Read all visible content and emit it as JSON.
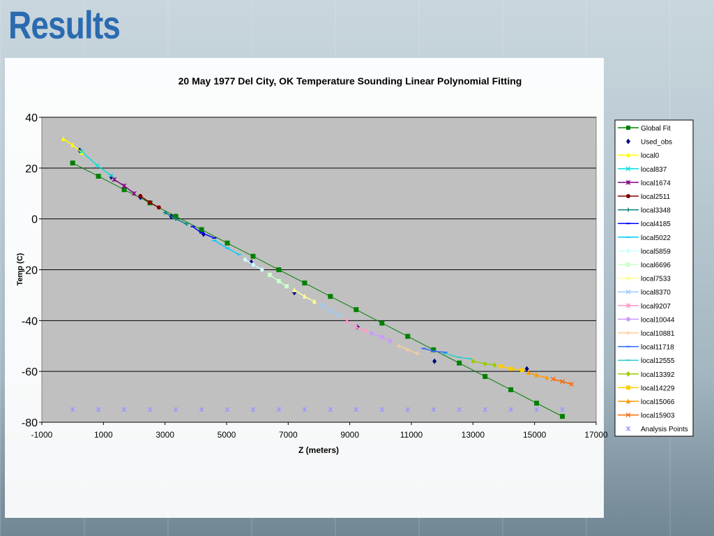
{
  "slide": {
    "title": "Results"
  },
  "colors": {
    "title": "#2a6bb0",
    "plot_bg": "#c0c0c0",
    "gridline": "#000000"
  },
  "chart_data": {
    "type": "scatter",
    "title": "20 May 1977 Del City, OK Temperature Sounding Linear Polynomial Fitting",
    "xlabel": "Z (meters)",
    "ylabel": "Temp (C)",
    "xlim": [
      -1000,
      17000
    ],
    "ylim": [
      -80,
      40
    ],
    "xticks": [
      -1000,
      1000,
      3000,
      5000,
      7000,
      9000,
      11000,
      13000,
      15000,
      17000
    ],
    "yticks": [
      40,
      20,
      0,
      -20,
      -40,
      -60,
      -80
    ],
    "grid": "horizontal",
    "legend_position": "right",
    "series": [
      {
        "name": "Global Fit",
        "color": "#008000",
        "marker": "square",
        "line": true,
        "x": [
          0,
          837,
          1674,
          2511,
          3348,
          4185,
          5022,
          5859,
          6696,
          7533,
          8370,
          9207,
          10044,
          10881,
          11718,
          12555,
          13392,
          14229,
          15066,
          15903
        ],
        "y": [
          22,
          16.8,
          11.5,
          6.3,
          1,
          -4.2,
          -9.5,
          -14.7,
          -20,
          -25.2,
          -30.5,
          -35.7,
          -41,
          -46.2,
          -51.5,
          -56.7,
          -62,
          -67.2,
          -72.5,
          -77.7
        ]
      },
      {
        "name": "Used_obs",
        "color": "#000080",
        "marker": "diamond",
        "line": false,
        "x": [
          230,
          1250,
          2200,
          3200,
          4250,
          5800,
          7200,
          9250,
          11750,
          14750
        ],
        "y": [
          27,
          16.5,
          8.5,
          1,
          -6,
          -17,
          -29,
          -42.5,
          -56,
          -59
        ]
      },
      {
        "name": "local0",
        "color": "#ffff00",
        "marker": "triangle",
        "line": true,
        "x": [
          -300,
          0,
          300
        ],
        "y": [
          31.5,
          29,
          26
        ]
      },
      {
        "name": "local837",
        "color": "#00e0e0",
        "marker": "x",
        "line": true,
        "x": [
          300,
          800,
          1250
        ],
        "y": [
          26.5,
          21,
          17
        ]
      },
      {
        "name": "local1674",
        "color": "#800080",
        "marker": "star",
        "line": true,
        "x": [
          1350,
          1674,
          2000
        ],
        "y": [
          15.5,
          13,
          10
        ]
      },
      {
        "name": "local2511",
        "color": "#800000",
        "marker": "circle",
        "line": true,
        "x": [
          2200,
          2500,
          2800
        ],
        "y": [
          9,
          6.5,
          4.5
        ]
      },
      {
        "name": "local3348",
        "color": "#008080",
        "marker": "plus",
        "line": true,
        "x": [
          3000,
          3348,
          3700
        ],
        "y": [
          2.5,
          0,
          -2
        ]
      },
      {
        "name": "local4185",
        "color": "#0000ff",
        "marker": "dash",
        "line": true,
        "x": [
          3900,
          4185,
          4600
        ],
        "y": [
          -3,
          -5.5,
          -7.5
        ]
      },
      {
        "name": "local5022",
        "color": "#00ccff",
        "marker": "dash",
        "line": true,
        "x": [
          4600,
          5022,
          5400
        ],
        "y": [
          -8.5,
          -11.5,
          -14
        ]
      },
      {
        "name": "local5859",
        "color": "#ccffff",
        "marker": "diamond",
        "line": true,
        "x": [
          5600,
          5859,
          6150
        ],
        "y": [
          -16,
          -18,
          -20
        ]
      },
      {
        "name": "local6696",
        "color": "#ccffcc",
        "marker": "square",
        "line": true,
        "x": [
          6400,
          6696,
          6950
        ],
        "y": [
          -22,
          -24.5,
          -26.5
        ]
      },
      {
        "name": "local7533",
        "color": "#ffff99",
        "marker": "triangle",
        "line": true,
        "x": [
          7200,
          7533,
          7850
        ],
        "y": [
          -28,
          -30.5,
          -32.5
        ]
      },
      {
        "name": "local8370",
        "color": "#99ccff",
        "marker": "x",
        "line": true,
        "x": [
          8100,
          8370,
          8650
        ],
        "y": [
          -34,
          -36,
          -38
        ]
      },
      {
        "name": "local9207",
        "color": "#ff99cc",
        "marker": "star",
        "line": true,
        "x": [
          8900,
          9207,
          9500
        ],
        "y": [
          -40,
          -42.5,
          -44
        ]
      },
      {
        "name": "local10044",
        "color": "#cc99ff",
        "marker": "circle",
        "line": true,
        "x": [
          9700,
          10044,
          10300
        ],
        "y": [
          -45,
          -46.5,
          -48
        ]
      },
      {
        "name": "local10881",
        "color": "#ffcc99",
        "marker": "plus",
        "line": true,
        "x": [
          10600,
          10881,
          11200
        ],
        "y": [
          -50,
          -51.5,
          -53
        ]
      },
      {
        "name": "local11718",
        "color": "#3366ff",
        "marker": "dash",
        "line": true,
        "x": [
          11400,
          11718,
          12100
        ],
        "y": [
          -51,
          -52,
          -52.5
        ]
      },
      {
        "name": "local12555",
        "color": "#33cccc",
        "marker": "dash",
        "line": true,
        "x": [
          12100,
          12555,
          12900
        ],
        "y": [
          -53,
          -54.5,
          -55
        ]
      },
      {
        "name": "local13392",
        "color": "#99cc00",
        "marker": "diamond",
        "line": true,
        "x": [
          13000,
          13392,
          13700
        ],
        "y": [
          -56,
          -57,
          -57.5
        ]
      },
      {
        "name": "local14229",
        "color": "#ffcc00",
        "marker": "square",
        "line": true,
        "x": [
          13900,
          14229,
          14600
        ],
        "y": [
          -58,
          -59,
          -59.5
        ]
      },
      {
        "name": "local15066",
        "color": "#ff9900",
        "marker": "triangle",
        "line": true,
        "x": [
          14800,
          15066,
          15400
        ],
        "y": [
          -60.5,
          -61.5,
          -62.5
        ]
      },
      {
        "name": "local15903",
        "color": "#ff6600",
        "marker": "x",
        "line": true,
        "x": [
          15600,
          15903,
          16200
        ],
        "y": [
          -63,
          -64,
          -65
        ]
      },
      {
        "name": "Analysis Points",
        "color": "#9999ff",
        "marker": "star",
        "line": false,
        "x": [
          0,
          837,
          1674,
          2511,
          3348,
          4185,
          5022,
          5859,
          6696,
          7533,
          8370,
          9207,
          10044,
          10881,
          11718,
          12555,
          13392,
          14229,
          15066,
          15903
        ],
        "y": [
          -75,
          -75,
          -75,
          -75,
          -75,
          -75,
          -75,
          -75,
          -75,
          -75,
          -75,
          -75,
          -75,
          -75,
          -75,
          -75,
          -75,
          -75,
          -75,
          -75
        ]
      }
    ]
  }
}
